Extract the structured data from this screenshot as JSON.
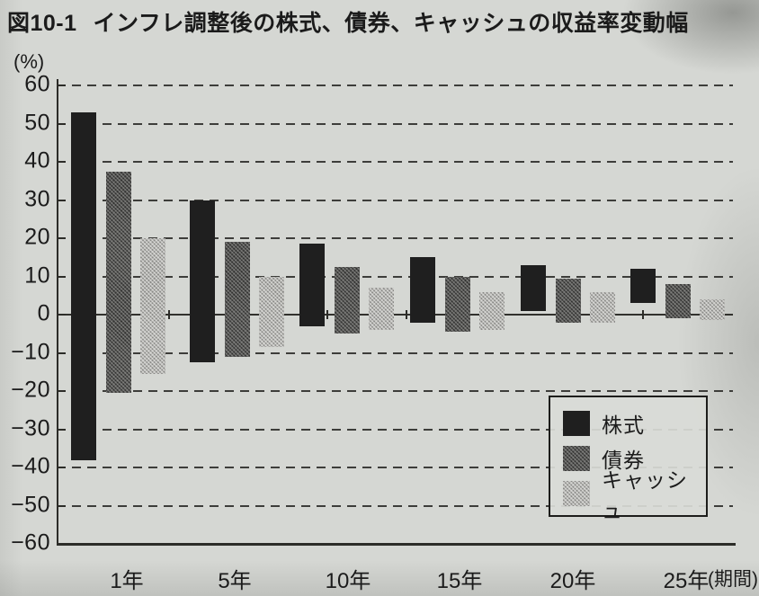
{
  "page": {
    "figure_label": "図10-1",
    "title": "インフレ調整後の株式、債券、キャッシュの収益率変動幅"
  },
  "chart_data": {
    "type": "bar",
    "subtype": "grouped-floating-range-bars",
    "title": "インフレ調整後の株式、債券、キャッシュの収益率変動幅",
    "unit_label": "(%)",
    "xlabel": "",
    "ylabel": "(%)",
    "x_axis_suffix": "(期間)",
    "categories": [
      "1年",
      "5年",
      "10年",
      "15年",
      "20年",
      "25年"
    ],
    "series": [
      {
        "name": "株式",
        "key": "stocks",
        "color": "#1f1f1f",
        "max": [
          53,
          30,
          18.5,
          15,
          13,
          12
        ],
        "min": [
          -38,
          -12.5,
          -3,
          -2,
          1,
          3
        ]
      },
      {
        "name": "債券",
        "key": "bonds",
        "color": "#555553",
        "max": [
          37.5,
          19,
          12.5,
          10,
          9.5,
          8
        ],
        "min": [
          -20.5,
          -11,
          -5,
          -4.5,
          -2,
          -1
        ]
      },
      {
        "name": "キャッシュ",
        "key": "cash",
        "color": "#b4b4b0",
        "max": [
          20,
          10,
          7,
          6,
          6,
          4
        ],
        "min": [
          -15.5,
          -8.5,
          -4,
          -4,
          -2,
          -1.5
        ]
      }
    ],
    "ylim": [
      -60,
      60
    ],
    "yticks": [
      60,
      50,
      40,
      30,
      20,
      10,
      0,
      -10,
      -20,
      -30,
      -40,
      -50,
      -60
    ],
    "grid": "horizontal dashed, solid zero line",
    "legend_position": "inside bottom-right",
    "legend": [
      "株式",
      "債券",
      "キャッシュ"
    ]
  }
}
